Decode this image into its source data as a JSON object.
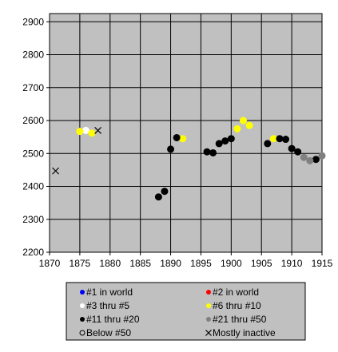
{
  "chart_data": {
    "type": "scatter",
    "title": "",
    "xlabel": "",
    "ylabel": "",
    "xlim": [
      1870,
      1915
    ],
    "ylim": [
      2200,
      2925
    ],
    "x_ticks": [
      1870,
      1875,
      1880,
      1885,
      1890,
      1895,
      1900,
      1905,
      1910,
      1915
    ],
    "y_ticks": [
      2200,
      2300,
      2400,
      2500,
      2600,
      2700,
      2800,
      2900
    ],
    "grid": "vertical-and-horizontal",
    "plot_background": "#c0c0c0",
    "legend_placement": "bottom",
    "legend": [
      {
        "label": "#1 in world",
        "marker": "dot",
        "color": "#0000ff"
      },
      {
        "label": "#2 in world",
        "marker": "dot",
        "color": "#ff0000"
      },
      {
        "label": "#3 thru #5",
        "marker": "dot",
        "color": "#ffffff"
      },
      {
        "label": "#6 thru #10",
        "marker": "dot",
        "color": "#ffff00"
      },
      {
        "label": "#11 thru #20",
        "marker": "dot",
        "color": "#000000"
      },
      {
        "label": "#21 thru #50",
        "marker": "dot",
        "color": "#808080"
      },
      {
        "label": "Below #50",
        "marker": "circle",
        "color": "#000000"
      },
      {
        "label": "Mostly inactive",
        "marker": "x",
        "color": "#000000"
      }
    ],
    "series": [
      {
        "category": "#3 thru #5",
        "color": "#ffffff",
        "marker": "dot",
        "points": [
          [
            1876,
            2570
          ]
        ]
      },
      {
        "category": "#6 thru #10",
        "color": "#ffff00",
        "marker": "dot",
        "points": [
          [
            1875,
            2567
          ],
          [
            1877,
            2562
          ],
          [
            1892,
            2545
          ],
          [
            1901,
            2575
          ],
          [
            1902,
            2600
          ],
          [
            1903,
            2585
          ],
          [
            1907,
            2545
          ]
        ]
      },
      {
        "category": "#11 thru #20",
        "color": "#000000",
        "marker": "dot",
        "points": [
          [
            1888,
            2368
          ],
          [
            1889,
            2385
          ],
          [
            1890,
            2513
          ],
          [
            1891,
            2548
          ],
          [
            1896,
            2505
          ],
          [
            1897,
            2502
          ],
          [
            1898,
            2530
          ],
          [
            1899,
            2538
          ],
          [
            1900,
            2545
          ],
          [
            1906,
            2530
          ],
          [
            1908,
            2545
          ],
          [
            1909,
            2543
          ],
          [
            1910,
            2515
          ],
          [
            1911,
            2505
          ],
          [
            1914,
            2482
          ]
        ]
      },
      {
        "category": "#21 thru #50",
        "color": "#808080",
        "marker": "dot",
        "points": [
          [
            1912,
            2488
          ],
          [
            1913,
            2478
          ],
          [
            1915,
            2493
          ]
        ]
      },
      {
        "category": "Mostly inactive",
        "color": "#000000",
        "marker": "x",
        "points": [
          [
            1871,
            2447
          ],
          [
            1878,
            2570
          ]
        ]
      }
    ]
  }
}
